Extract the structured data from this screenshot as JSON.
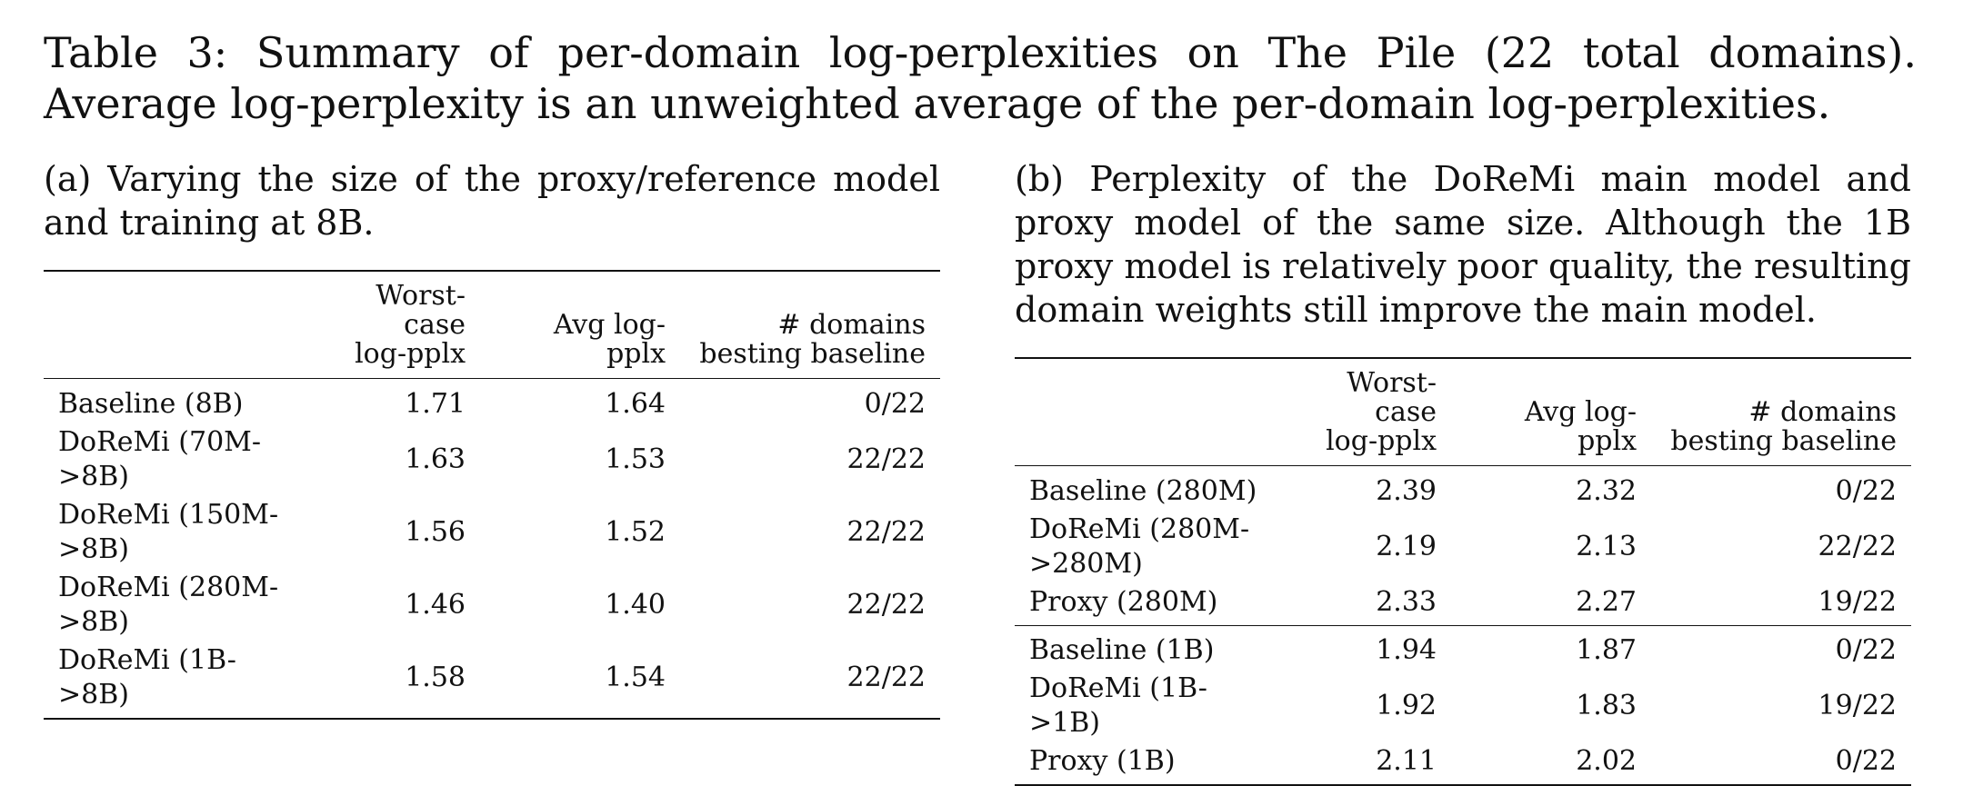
{
  "caption": "Table 3: Summary of per-domain log-perplexities on The Pile (22 total domains). Average log-perplexity is an unweighted average of the per-domain log-perplexities.",
  "table_a": {
    "caption": "(a) Varying the size of the proxy/reference model and training at 8B.",
    "headers": {
      "worst_line1": "Worst-case",
      "worst_line2": "log-pplx",
      "avg": "Avg log-pplx",
      "domains_line1": "# domains",
      "domains_line2": "besting baseline"
    },
    "rows": [
      {
        "name": "Baseline (8B)",
        "worst": "1.71",
        "avg": "1.64",
        "domains": "0/22"
      },
      {
        "name": "DoReMi (70M->8B)",
        "worst": "1.63",
        "avg": "1.53",
        "domains": "22/22"
      },
      {
        "name": "DoReMi (150M->8B)",
        "worst": "1.56",
        "avg": "1.52",
        "domains": "22/22"
      },
      {
        "name": "DoReMi (280M->8B)",
        "worst": "1.46",
        "avg": "1.40",
        "domains": "22/22"
      },
      {
        "name": "DoReMi (1B->8B)",
        "worst": "1.58",
        "avg": "1.54",
        "domains": "22/22"
      }
    ]
  },
  "table_b": {
    "caption": "(b) Perplexity of the DoReMi main model and proxy model of the same size. Although the 1B proxy model is relatively poor quality, the resulting domain weights still improve the main model.",
    "headers": {
      "worst_line1": "Worst-case",
      "worst_line2": "log-pplx",
      "avg": "Avg log-pplx",
      "domains_line1": "# domains",
      "domains_line2": "besting baseline"
    },
    "group1": [
      {
        "name": "Baseline (280M)",
        "worst": "2.39",
        "avg": "2.32",
        "domains": "0/22"
      },
      {
        "name": "DoReMi (280M->280M)",
        "worst": "2.19",
        "avg": "2.13",
        "domains": "22/22"
      },
      {
        "name": "Proxy (280M)",
        "worst": "2.33",
        "avg": "2.27",
        "domains": "19/22"
      }
    ],
    "group2": [
      {
        "name": "Baseline (1B)",
        "worst": "1.94",
        "avg": "1.87",
        "domains": "0/22"
      },
      {
        "name": "DoReMi (1B->1B)",
        "worst": "1.92",
        "avg": "1.83",
        "domains": "19/22"
      },
      {
        "name": "Proxy (1B)",
        "worst": "2.11",
        "avg": "2.02",
        "domains": "0/22"
      }
    ]
  }
}
